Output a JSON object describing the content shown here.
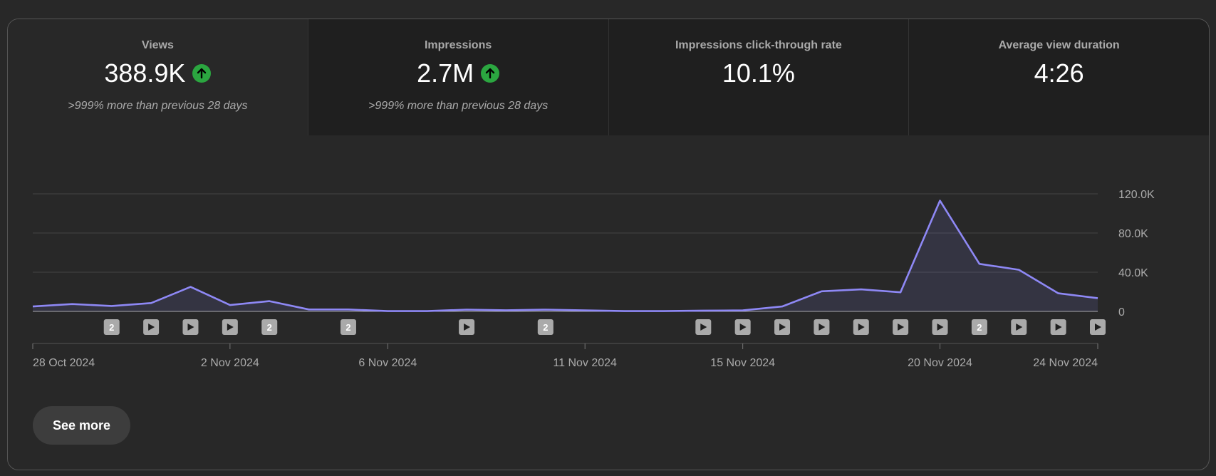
{
  "metrics": [
    {
      "label": "Views",
      "value": "388.9K",
      "trend": "up",
      "note": ">999% more than previous 28 days"
    },
    {
      "label": "Impressions",
      "value": "2.7M",
      "trend": "up",
      "note": ">999% more than previous 28 days"
    },
    {
      "label": "Impressions click-through rate",
      "value": "10.1%",
      "trend": "",
      "note": ""
    },
    {
      "label": "Average view duration",
      "value": "4:26",
      "trend": "",
      "note": ""
    }
  ],
  "see_more_label": "See more",
  "colors": {
    "line": "#8e88f5",
    "trend_up": "#2ba640",
    "marker": "#aaaaaa"
  },
  "chart_data": {
    "type": "area",
    "series": [
      {
        "values": [
          5000,
          7500,
          5500,
          8500,
          25000,
          6500,
          10500,
          2000,
          2000,
          300,
          300,
          1800,
          1200,
          1800,
          1000,
          300,
          300,
          800,
          1000,
          5000,
          20500,
          22500,
          19500,
          113000,
          48500,
          42500,
          18500,
          13500
        ]
      }
    ],
    "x_start": "28 Oct 2024",
    "days": 28,
    "ylim": [
      0,
      120000
    ],
    "y_ticks": [
      {
        "value": 0,
        "label": "0"
      },
      {
        "value": 40000,
        "label": "40.0K"
      },
      {
        "value": 80000,
        "label": "80.0K"
      },
      {
        "value": 120000,
        "label": "120.0K"
      }
    ],
    "x_ticks": [
      {
        "day": 0,
        "label": "28 Oct 2024"
      },
      {
        "day": 5,
        "label": "2 Nov 2024"
      },
      {
        "day": 9,
        "label": "6 Nov 2024"
      },
      {
        "day": 14,
        "label": "11 Nov 2024"
      },
      {
        "day": 18,
        "label": "15 Nov 2024"
      },
      {
        "day": 23,
        "label": "20 Nov 2024"
      },
      {
        "day": 27,
        "label": "24 Nov 2024"
      }
    ],
    "event_markers": [
      {
        "day": 2,
        "kind": "count",
        "text": "2"
      },
      {
        "day": 3,
        "kind": "video"
      },
      {
        "day": 4,
        "kind": "video"
      },
      {
        "day": 5,
        "kind": "video"
      },
      {
        "day": 6,
        "kind": "count",
        "text": "2"
      },
      {
        "day": 8,
        "kind": "count",
        "text": "2"
      },
      {
        "day": 11,
        "kind": "video"
      },
      {
        "day": 13,
        "kind": "count",
        "text": "2"
      },
      {
        "day": 17,
        "kind": "video"
      },
      {
        "day": 18,
        "kind": "video"
      },
      {
        "day": 19,
        "kind": "video"
      },
      {
        "day": 20,
        "kind": "video"
      },
      {
        "day": 21,
        "kind": "video"
      },
      {
        "day": 22,
        "kind": "video"
      },
      {
        "day": 23,
        "kind": "video"
      },
      {
        "day": 24,
        "kind": "count",
        "text": "2"
      },
      {
        "day": 25,
        "kind": "video"
      },
      {
        "day": 26,
        "kind": "video"
      },
      {
        "day": 27,
        "kind": "video"
      }
    ],
    "grid": true
  }
}
